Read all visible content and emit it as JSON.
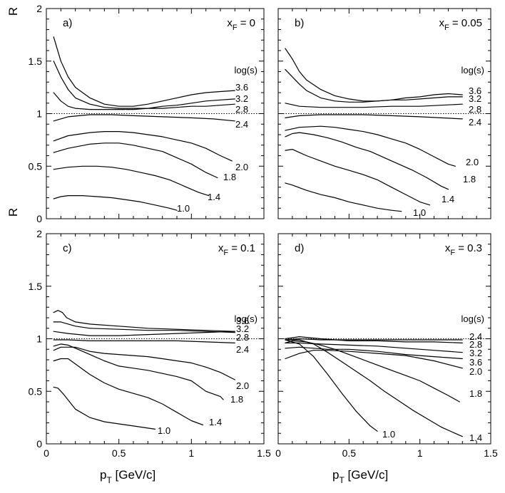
{
  "figure": {
    "ylabel": "R",
    "xlabel_main": "p",
    "xlabel_sub": "T",
    "xlabel_unit": " [GeV/c]",
    "legend_title": "log(s)",
    "x_ticks": [
      "0",
      "0.5",
      "1",
      "1.5"
    ],
    "y_ticks": [
      "0",
      "0.5",
      "1",
      "1.5",
      "2"
    ]
  },
  "chart_data": [
    {
      "type": "line",
      "panel_label": "a)",
      "title_x": "x",
      "title_sub": "F",
      "title_value": " = 0",
      "xlim": [
        0,
        1.5
      ],
      "ylim": [
        0,
        2
      ],
      "reference_line": 1,
      "series": [
        {
          "name": "3.6",
          "x": [
            0.05,
            0.1,
            0.15,
            0.2,
            0.3,
            0.4,
            0.5,
            0.6,
            0.7,
            0.8,
            0.9,
            1.0,
            1.1,
            1.2,
            1.3
          ],
          "y": [
            1.73,
            1.5,
            1.35,
            1.25,
            1.15,
            1.09,
            1.07,
            1.07,
            1.09,
            1.12,
            1.15,
            1.18,
            1.2,
            1.21,
            1.22
          ]
        },
        {
          "name": "3.2",
          "x": [
            0.05,
            0.1,
            0.15,
            0.2,
            0.3,
            0.4,
            0.5,
            0.6,
            0.7,
            0.8,
            0.9,
            1.0,
            1.1,
            1.2,
            1.3
          ],
          "y": [
            1.5,
            1.35,
            1.23,
            1.15,
            1.09,
            1.06,
            1.05,
            1.05,
            1.05,
            1.07,
            1.08,
            1.1,
            1.12,
            1.13,
            1.14
          ]
        },
        {
          "name": "2.8",
          "x": [
            0.05,
            0.1,
            0.15,
            0.2,
            0.3,
            0.4,
            0.5,
            0.6,
            0.7,
            0.8,
            0.9,
            1.0,
            1.1,
            1.2,
            1.3
          ],
          "y": [
            1.2,
            1.12,
            1.07,
            1.05,
            1.04,
            1.04,
            1.04,
            1.04,
            1.05,
            1.05,
            1.06,
            1.07,
            1.07,
            1.08,
            1.09
          ]
        },
        {
          "name": "2.4",
          "x": [
            0.05,
            0.15,
            0.3,
            0.45,
            0.6,
            0.8,
            1.0,
            1.15,
            1.3
          ],
          "y": [
            0.93,
            0.97,
            0.99,
            0.99,
            0.98,
            0.97,
            0.96,
            0.95,
            0.93
          ]
        },
        {
          "name": "2.0",
          "x": [
            0.05,
            0.15,
            0.3,
            0.4,
            0.5,
            0.6,
            0.7,
            0.8,
            0.9,
            1.0,
            1.1,
            1.2,
            1.28
          ],
          "y": [
            0.74,
            0.79,
            0.82,
            0.83,
            0.83,
            0.82,
            0.8,
            0.78,
            0.75,
            0.72,
            0.67,
            0.6,
            0.55
          ]
        },
        {
          "name": "1.8",
          "x": [
            0.05,
            0.15,
            0.3,
            0.4,
            0.5,
            0.6,
            0.7,
            0.8,
            0.9,
            1.0,
            1.1,
            1.18
          ],
          "y": [
            0.63,
            0.67,
            0.71,
            0.72,
            0.72,
            0.7,
            0.67,
            0.64,
            0.58,
            0.52,
            0.44,
            0.39
          ]
        },
        {
          "name": "1.4",
          "x": [
            0.05,
            0.15,
            0.25,
            0.35,
            0.45,
            0.55,
            0.65,
            0.75,
            0.85,
            0.95,
            1.05,
            1.12
          ],
          "y": [
            0.47,
            0.49,
            0.5,
            0.5,
            0.49,
            0.47,
            0.44,
            0.41,
            0.37,
            0.31,
            0.25,
            0.22
          ]
        },
        {
          "name": "1.0",
          "x": [
            0.05,
            0.1,
            0.15,
            0.25,
            0.35,
            0.45,
            0.55,
            0.65,
            0.75,
            0.85,
            0.9
          ],
          "y": [
            0.19,
            0.21,
            0.22,
            0.22,
            0.21,
            0.2,
            0.18,
            0.16,
            0.13,
            0.1,
            0.08
          ]
        }
      ]
    },
    {
      "type": "line",
      "panel_label": "b)",
      "title_x": "x",
      "title_sub": "F",
      "title_value": " = 0.05",
      "xlim": [
        0,
        1.5
      ],
      "ylim": [
        0,
        2
      ],
      "reference_line": 1,
      "series": [
        {
          "name": "3.6",
          "x": [
            0.05,
            0.1,
            0.15,
            0.2,
            0.3,
            0.4,
            0.5,
            0.6,
            0.7,
            0.8,
            0.9,
            1.0,
            1.1,
            1.2,
            1.3
          ],
          "y": [
            1.62,
            1.52,
            1.4,
            1.32,
            1.23,
            1.17,
            1.14,
            1.12,
            1.12,
            1.13,
            1.15,
            1.16,
            1.18,
            1.19,
            1.18
          ]
        },
        {
          "name": "3.2",
          "x": [
            0.05,
            0.1,
            0.15,
            0.2,
            0.3,
            0.4,
            0.5,
            0.6,
            0.7,
            0.8,
            0.9,
            1.0,
            1.1,
            1.2,
            1.3
          ],
          "y": [
            1.42,
            1.35,
            1.28,
            1.22,
            1.15,
            1.12,
            1.11,
            1.11,
            1.12,
            1.13,
            1.13,
            1.14,
            1.15,
            1.16,
            1.16
          ]
        },
        {
          "name": "2.8",
          "x": [
            0.05,
            0.15,
            0.3,
            0.45,
            0.6,
            0.8,
            1.0,
            1.15,
            1.3
          ],
          "y": [
            1.1,
            1.07,
            1.06,
            1.06,
            1.06,
            1.07,
            1.07,
            1.08,
            1.09
          ]
        },
        {
          "name": "2.4",
          "x": [
            0.05,
            0.15,
            0.3,
            0.45,
            0.6,
            0.8,
            1.0,
            1.15,
            1.3
          ],
          "y": [
            0.96,
            0.98,
            0.99,
            0.99,
            0.99,
            0.98,
            0.97,
            0.96,
            0.95
          ]
        },
        {
          "name": "2.0",
          "x": [
            0.05,
            0.15,
            0.3,
            0.4,
            0.5,
            0.6,
            0.7,
            0.8,
            0.9,
            1.0,
            1.1,
            1.2,
            1.25
          ],
          "y": [
            0.84,
            0.87,
            0.88,
            0.87,
            0.85,
            0.83,
            0.8,
            0.76,
            0.72,
            0.66,
            0.59,
            0.52,
            0.5
          ]
        },
        {
          "name": "1.8",
          "x": [
            0.05,
            0.1,
            0.15,
            0.25,
            0.35,
            0.45,
            0.55,
            0.65,
            0.75,
            0.85,
            0.95,
            1.05,
            1.15,
            1.2
          ],
          "y": [
            0.78,
            0.81,
            0.82,
            0.8,
            0.77,
            0.73,
            0.68,
            0.64,
            0.58,
            0.52,
            0.46,
            0.39,
            0.31,
            0.28
          ]
        },
        {
          "name": "1.4",
          "x": [
            0.05,
            0.1,
            0.15,
            0.2,
            0.3,
            0.4,
            0.5,
            0.6,
            0.7,
            0.8,
            0.9,
            1.0,
            1.07
          ],
          "y": [
            0.65,
            0.66,
            0.63,
            0.6,
            0.55,
            0.5,
            0.46,
            0.42,
            0.37,
            0.3,
            0.23,
            0.16,
            0.13
          ]
        },
        {
          "name": "1.0",
          "x": [
            0.05,
            0.1,
            0.2,
            0.3,
            0.4,
            0.5,
            0.6,
            0.7,
            0.8,
            0.87
          ],
          "y": [
            0.34,
            0.32,
            0.27,
            0.23,
            0.2,
            0.16,
            0.13,
            0.1,
            0.08,
            0.07
          ]
        }
      ]
    },
    {
      "type": "line",
      "panel_label": "c)",
      "title_x": "x",
      "title_sub": "F",
      "title_value": " = 0.1",
      "xlim": [
        0,
        1.5
      ],
      "ylim": [
        0,
        2
      ],
      "reference_line": 1,
      "series": [
        {
          "name": "3.6",
          "x": [
            0.05,
            0.08,
            0.11,
            0.14,
            0.2,
            0.3,
            0.5,
            0.7,
            0.9,
            1.1,
            1.3
          ],
          "y": [
            1.25,
            1.27,
            1.25,
            1.2,
            1.16,
            1.14,
            1.12,
            1.1,
            1.09,
            1.08,
            1.07
          ]
        },
        {
          "name": "3.2",
          "x": [
            0.05,
            0.1,
            0.2,
            0.3,
            0.5,
            0.7,
            0.9,
            1.1,
            1.3
          ],
          "y": [
            1.16,
            1.16,
            1.12,
            1.1,
            1.09,
            1.08,
            1.08,
            1.07,
            1.06
          ]
        },
        {
          "name": "2.8",
          "x": [
            0.05,
            0.15,
            0.3,
            0.5,
            0.7,
            0.9,
            1.1,
            1.3
          ],
          "y": [
            1.07,
            1.05,
            1.03,
            1.03,
            1.04,
            1.05,
            1.06,
            1.07
          ]
        },
        {
          "name": "2.4",
          "x": [
            0.05,
            0.15,
            0.3,
            0.5,
            0.7,
            0.9,
            1.1,
            1.3
          ],
          "y": [
            0.99,
            0.99,
            0.98,
            0.98,
            0.98,
            0.98,
            0.97,
            0.96
          ]
        },
        {
          "name": "2.0",
          "x": [
            0.05,
            0.1,
            0.2,
            0.3,
            0.4,
            0.5,
            0.6,
            0.7,
            0.8,
            0.9,
            1.0,
            1.1,
            1.2,
            1.3
          ],
          "y": [
            0.89,
            0.92,
            0.92,
            0.88,
            0.86,
            0.85,
            0.84,
            0.83,
            0.81,
            0.79,
            0.77,
            0.73,
            0.68,
            0.61
          ]
        },
        {
          "name": "1.8",
          "x": [
            0.05,
            0.1,
            0.15,
            0.2,
            0.3,
            0.4,
            0.5,
            0.6,
            0.7,
            0.8,
            0.9,
            1.0,
            1.1,
            1.2,
            1.22
          ],
          "y": [
            0.93,
            0.95,
            0.94,
            0.91,
            0.85,
            0.79,
            0.74,
            0.72,
            0.7,
            0.67,
            0.64,
            0.6,
            0.5,
            0.45,
            0.42
          ]
        },
        {
          "name": "1.4",
          "x": [
            0.05,
            0.1,
            0.15,
            0.2,
            0.3,
            0.4,
            0.5,
            0.6,
            0.7,
            0.8,
            0.9,
            1.0,
            1.08
          ],
          "y": [
            0.79,
            0.81,
            0.81,
            0.76,
            0.66,
            0.58,
            0.52,
            0.48,
            0.44,
            0.38,
            0.3,
            0.22,
            0.18
          ]
        },
        {
          "name": "1.0",
          "x": [
            0.05,
            0.08,
            0.12,
            0.16,
            0.2,
            0.3,
            0.4,
            0.5,
            0.6,
            0.7,
            0.75
          ],
          "y": [
            0.54,
            0.53,
            0.47,
            0.4,
            0.33,
            0.25,
            0.21,
            0.19,
            0.17,
            0.15,
            0.14
          ]
        }
      ]
    },
    {
      "type": "line",
      "panel_label": "d)",
      "title_x": "x",
      "title_sub": "F",
      "title_value": " = 0.3",
      "xlim": [
        0,
        1.5
      ],
      "ylim": [
        0,
        2
      ],
      "reference_line": 1,
      "series": [
        {
          "name": "2.4",
          "x": [
            0.05,
            0.15,
            0.3,
            0.5,
            0.7,
            0.9,
            1.1,
            1.3
          ],
          "y": [
            0.99,
            1.0,
            0.99,
            0.99,
            0.99,
            0.99,
            0.99,
            0.99
          ]
        },
        {
          "name": "2.8",
          "x": [
            0.05,
            0.15,
            0.3,
            0.5,
            0.7,
            0.9,
            1.1,
            1.3
          ],
          "y": [
            1.0,
            1.02,
            1.0,
            0.98,
            0.98,
            0.97,
            0.97,
            0.96
          ]
        },
        {
          "name": "3.2",
          "x": [
            0.05,
            0.15,
            0.3,
            0.5,
            0.7,
            0.9,
            1.1,
            1.3
          ],
          "y": [
            0.96,
            0.96,
            0.95,
            0.94,
            0.93,
            0.91,
            0.89,
            0.87
          ]
        },
        {
          "name": "3.6",
          "x": [
            0.05,
            0.15,
            0.25,
            0.35,
            0.5,
            0.7,
            0.9,
            1.1,
            1.3
          ],
          "y": [
            0.91,
            0.92,
            0.91,
            0.9,
            0.9,
            0.88,
            0.85,
            0.83,
            0.81
          ]
        },
        {
          "name": "2.0",
          "x": [
            0.05,
            0.15,
            0.25,
            0.35,
            0.5,
            0.7,
            0.9,
            1.1,
            1.3
          ],
          "y": [
            0.81,
            0.86,
            0.89,
            0.89,
            0.88,
            0.86,
            0.84,
            0.79,
            0.72
          ]
        },
        {
          "name": "1.8",
          "x": [
            0.05,
            0.1,
            0.2,
            0.3,
            0.4,
            0.5,
            0.6,
            0.7,
            0.8,
            0.9,
            1.0,
            1.1,
            1.2,
            1.28
          ],
          "y": [
            0.96,
            0.98,
            0.97,
            0.94,
            0.9,
            0.85,
            0.8,
            0.75,
            0.7,
            0.65,
            0.6,
            0.53,
            0.46,
            0.4
          ]
        },
        {
          "name": "1.4",
          "x": [
            0.05,
            0.15,
            0.25,
            0.35,
            0.45,
            0.55,
            0.65,
            0.75,
            0.85,
            0.95,
            1.05,
            1.15,
            1.25,
            1.3
          ],
          "y": [
            0.99,
            0.99,
            0.95,
            0.87,
            0.78,
            0.69,
            0.6,
            0.5,
            0.41,
            0.32,
            0.24,
            0.16,
            0.1,
            0.07
          ]
        },
        {
          "name": "1.0",
          "x": [
            0.05,
            0.15,
            0.25,
            0.35,
            0.45,
            0.55,
            0.65,
            0.7
          ],
          "y": [
            0.99,
            0.95,
            0.83,
            0.66,
            0.48,
            0.31,
            0.17,
            0.12
          ]
        }
      ]
    }
  ]
}
